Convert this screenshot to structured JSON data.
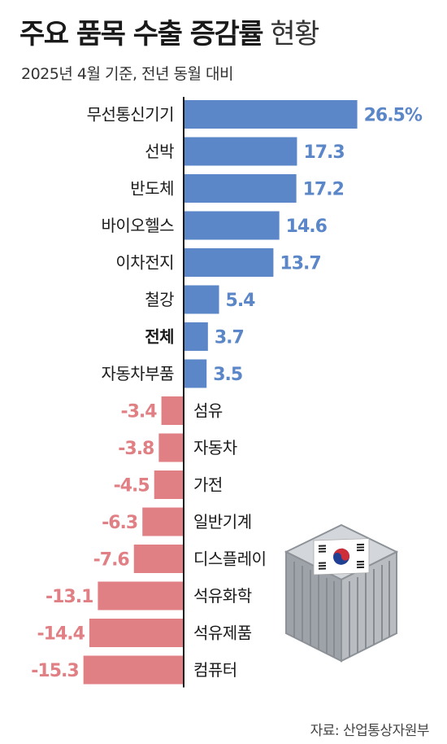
{
  "title": {
    "strong": "주요 품목 수출 증감률",
    "light": "현황"
  },
  "subtitle": "2025년 4월 기준, 전년 동월 대비",
  "source": "자료: 산업통상자원부",
  "colors": {
    "positive": "#5b87c9",
    "negative": "#e07f84",
    "axis": "#1a1a1a",
    "label": "#1a1a1a"
  },
  "chart_data": {
    "type": "bar",
    "orientation": "horizontal",
    "unit": "%",
    "categories": [
      "무선통신기기",
      "선박",
      "반도체",
      "바이오헬스",
      "이차전지",
      "철강",
      "전체",
      "자동차부품",
      "섬유",
      "자동차",
      "가전",
      "일반기계",
      "디스플레이",
      "석유화학",
      "석유제품",
      "컴퓨터"
    ],
    "values": [
      26.5,
      17.3,
      17.2,
      14.6,
      13.7,
      5.4,
      3.7,
      3.5,
      -3.4,
      -3.8,
      -4.5,
      -6.3,
      -7.6,
      -13.1,
      -14.4,
      -15.3
    ],
    "value_labels": [
      "26.5%",
      "17.3",
      "17.2",
      "14.6",
      "13.7",
      "5.4",
      "3.7",
      "3.5",
      "-3.4",
      "-3.8",
      "-4.5",
      "-6.3",
      "-7.6",
      "-13.1",
      "-14.4",
      "-15.3"
    ],
    "highlight": "전체",
    "xlim": [
      -15.3,
      26.5
    ]
  },
  "illustration": {
    "type": "shipping-container-icon",
    "flag": "south-korea-flag-icon"
  }
}
